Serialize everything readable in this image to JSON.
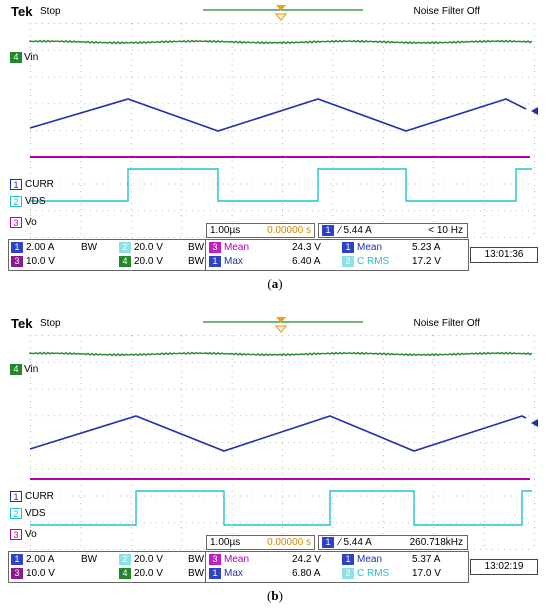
{
  "panels": [
    {
      "caption": "a",
      "brand": "Tek",
      "state": "Stop",
      "noise_filter": "Noise Filter Off",
      "channels": {
        "ch1": "CURR",
        "ch2": "VDS",
        "ch3": "Vo",
        "ch4": "Vin"
      },
      "timebase": "1.00µs",
      "trigger_pos": "0.00000 s",
      "trigger_level": "∕ 5.44 A",
      "trigger_freq": "< 10 Hz",
      "scales": {
        "ch1": "2.00 A",
        "ch2": "20.0 V",
        "ch3": "10.0 V",
        "ch4": "20.0 V"
      },
      "bw": "BW",
      "meas": {
        "m3_label": "Mean",
        "m3_value": "24.3 V",
        "m1_label": "Max",
        "m1_value": "6.40 A",
        "m1b_label": "Mean",
        "m1b_value": "5.23 A",
        "m2_label": "C RMS",
        "m2_value": "17.2 V"
      },
      "time": "13:01:36"
    },
    {
      "caption": "b",
      "brand": "Tek",
      "state": "Stop",
      "noise_filter": "Noise Filter Off",
      "channels": {
        "ch1": "CURR",
        "ch2": "VDS",
        "ch3": "Vo",
        "ch4": "Vin"
      },
      "timebase": "1.00µs",
      "trigger_pos": "0.00000 s",
      "trigger_level": "∕ 5.44 A",
      "trigger_freq": "260.718kHz",
      "scales": {
        "ch1": "2.00 A",
        "ch2": "20.0 V",
        "ch3": "10.0 V",
        "ch4": "20.0 V"
      },
      "bw": "BW",
      "meas": {
        "m3_label": "Mean",
        "m3_value": "24.2 V",
        "m1_label": "Max",
        "m1_value": "6.80 A",
        "m1b_label": "Mean",
        "m1b_value": "5.37 A",
        "m2_label": "C RMS",
        "m2_value": "17.0 V"
      },
      "time": "13:02:19"
    }
  ],
  "colors": {
    "ch1": "#1f2fb0",
    "ch2": "#22c3cc",
    "ch3": "#b000b0",
    "ch4": "#22882a",
    "trigger": "#f0a020"
  }
}
